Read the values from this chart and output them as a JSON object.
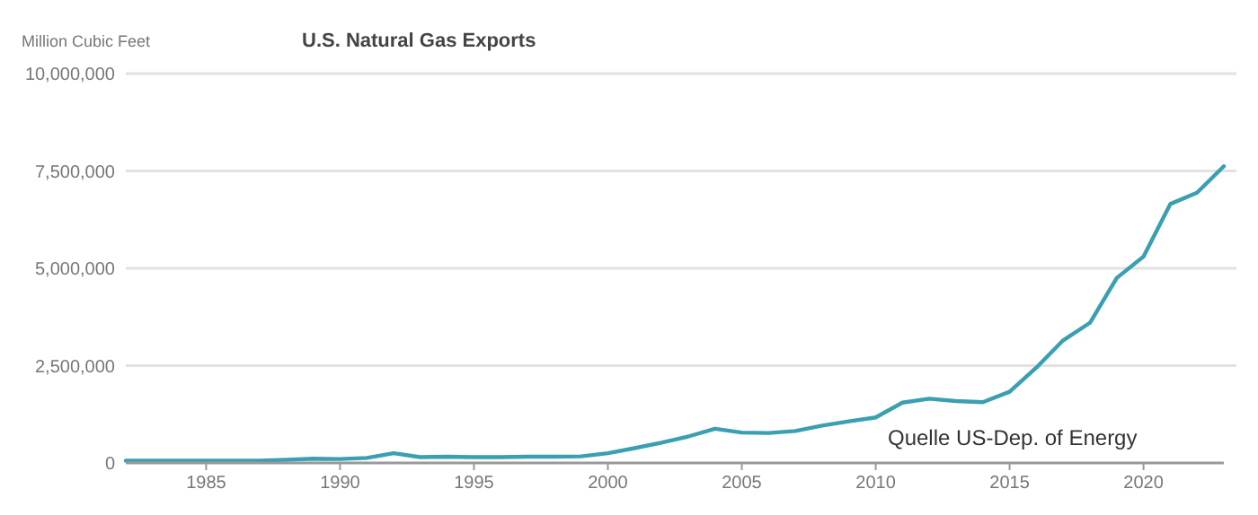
{
  "chart_data": {
    "type": "line",
    "title": "U.S. Natural Gas Exports",
    "ylabel": "Million Cubic Feet",
    "annotations": [
      "Quelle US-Dep. of Energy"
    ],
    "x": [
      1982,
      1983,
      1984,
      1985,
      1986,
      1987,
      1988,
      1989,
      1990,
      1991,
      1992,
      1993,
      1994,
      1995,
      1996,
      1997,
      1998,
      1999,
      2000,
      2001,
      2002,
      2003,
      2004,
      2005,
      2006,
      2007,
      2008,
      2009,
      2010,
      2011,
      2012,
      2013,
      2014,
      2015,
      2016,
      2017,
      2018,
      2019,
      2020,
      2021,
      2022,
      2023
    ],
    "series": [
      {
        "color": "#3a9fb0",
        "values": [
          60000,
          60000,
          60000,
          60000,
          60000,
          60000,
          80000,
          110000,
          100000,
          130000,
          250000,
          150000,
          160000,
          150000,
          150000,
          160000,
          160000,
          170000,
          250000,
          380000,
          520000,
          680000,
          880000,
          780000,
          770000,
          820000,
          960000,
          1070000,
          1170000,
          1550000,
          1650000,
          1590000,
          1560000,
          1830000,
          2450000,
          3150000,
          3600000,
          4750000,
          5300000,
          6650000,
          6940000,
          7620000
        ]
      }
    ],
    "xlim": [
      1982,
      2023
    ],
    "xticks": [
      1985,
      1990,
      1995,
      2000,
      2005,
      2010,
      2015,
      2020
    ],
    "ylim": [
      0,
      10000000
    ],
    "yticks": [
      {
        "value": 0,
        "label": "0"
      },
      {
        "value": 2500000,
        "label": "2,500,000"
      },
      {
        "value": 5000000,
        "label": "5,000,000"
      },
      {
        "value": 7500000,
        "label": "7,500,000"
      },
      {
        "value": 10000000,
        "label": "10,000,000"
      }
    ],
    "grid": "y"
  }
}
